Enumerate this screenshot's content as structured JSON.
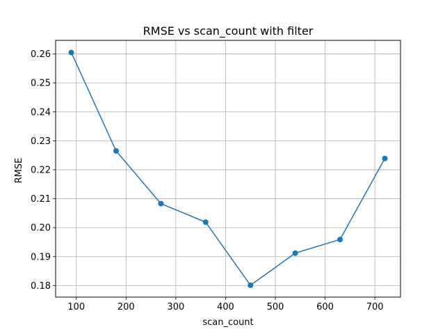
{
  "chart_data": {
    "type": "line",
    "title": "RMSE vs scan_count with filter",
    "xlabel": "scan_count",
    "ylabel": "RMSE",
    "x": [
      90,
      180,
      270,
      360,
      450,
      540,
      630,
      720
    ],
    "series": [
      {
        "values": [
          0.2605,
          0.2265,
          0.2083,
          0.2019,
          0.1801,
          0.1912,
          0.1959,
          0.2239
        ]
      }
    ],
    "xlim": [
      58.5,
      751.5
    ],
    "ylim": [
      0.176,
      0.2647
    ],
    "xticks": [
      100,
      200,
      300,
      400,
      500,
      600,
      700
    ],
    "yticks": [
      0.18,
      0.19,
      0.2,
      0.21,
      0.22,
      0.23,
      0.24,
      0.25,
      0.26
    ],
    "xtick_labels": [
      "100",
      "200",
      "300",
      "400",
      "500",
      "600",
      "700"
    ],
    "ytick_labels": [
      "0.18",
      "0.19",
      "0.20",
      "0.21",
      "0.22",
      "0.23",
      "0.24",
      "0.25",
      "0.26"
    ],
    "grid": true,
    "line_color": "#1f77b4",
    "marker": "circle"
  }
}
